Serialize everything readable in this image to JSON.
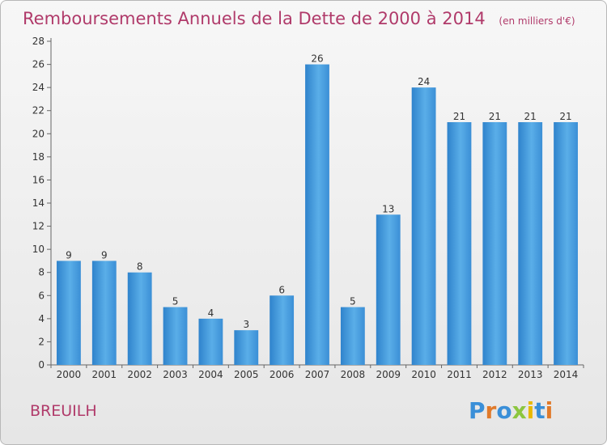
{
  "chart_data": {
    "type": "bar",
    "title": "Remboursements Annuels de la Dette de 2000 à 2014",
    "subtitle": "(en milliers d'€)",
    "categories": [
      "2000",
      "2001",
      "2002",
      "2003",
      "2004",
      "2005",
      "2006",
      "2007",
      "2008",
      "2009",
      "2010",
      "2011",
      "2012",
      "2013",
      "2014"
    ],
    "values": [
      9,
      9,
      8,
      5,
      4,
      3,
      6,
      26,
      5,
      13,
      24,
      21,
      21,
      21,
      21
    ],
    "ylim": [
      0,
      28
    ],
    "yticks": [
      0,
      2,
      4,
      6,
      8,
      10,
      12,
      14,
      16,
      18,
      20,
      22,
      24,
      26,
      28
    ],
    "grid": false,
    "bar_color": "#4a9fdf"
  },
  "footer": {
    "place": "BREUILH",
    "logo": "Proxiti"
  }
}
